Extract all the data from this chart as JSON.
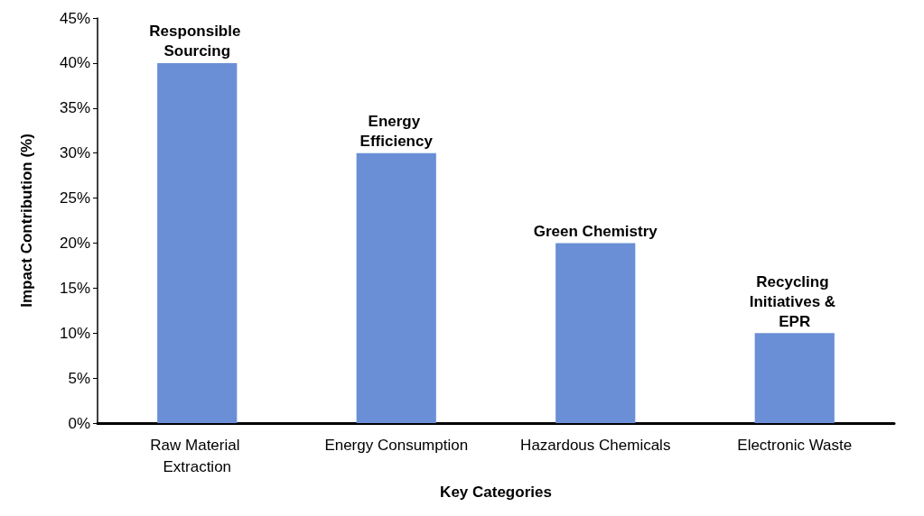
{
  "chart_data": {
    "type": "bar",
    "xlabel": "Key Categories",
    "ylabel": "Impact Contribution (%)",
    "categories": [
      "Raw Material Extraction",
      "Energy Consumption",
      "Hazardous Chemicals",
      "Electronic Waste"
    ],
    "values": [
      40,
      30,
      20,
      10
    ],
    "color": "#6a8fd6",
    "ylim": [
      0,
      45
    ],
    "yticks": [
      {
        "value": 0,
        "label": "0%"
      },
      {
        "value": 5,
        "label": "5%"
      },
      {
        "value": 10,
        "label": "10%"
      },
      {
        "value": 15,
        "label": "15%"
      },
      {
        "value": 20,
        "label": "20%"
      },
      {
        "value": 25,
        "label": "25%"
      },
      {
        "value": 30,
        "label": "30%"
      },
      {
        "value": 35,
        "label": "35%"
      },
      {
        "value": 40,
        "label": "40%"
      },
      {
        "value": 45,
        "label": "45%"
      }
    ],
    "grid": false,
    "annotations": [
      {
        "text": "Responsible Sourcing",
        "x": "Raw Material Extraction",
        "y": 40
      },
      {
        "text": "Energy Efficiency",
        "x": "Energy Consumption",
        "y": 30
      },
      {
        "text": "Green Chemistry",
        "x": "Hazardous Chemicals",
        "y": 20
      },
      {
        "text": "Recycling Initiatives & EPR",
        "x": "Electronic Waste",
        "y": 10
      }
    ]
  }
}
